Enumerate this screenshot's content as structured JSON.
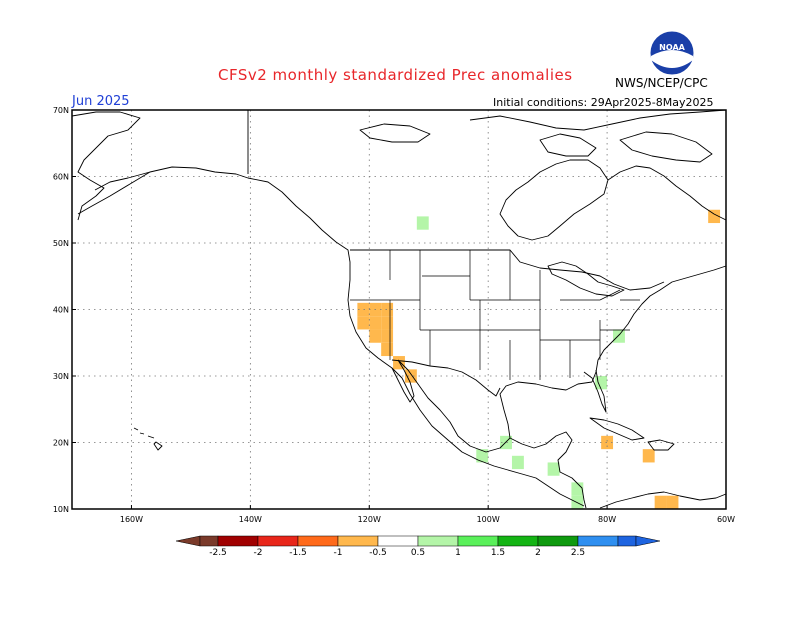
{
  "header": {
    "title": "CFSv2 monthly standardized Prec anomalies",
    "org": "NWS/NCEP/CPC",
    "month": "Jun 2025",
    "initial_conditions": "Initial conditions: 29Apr2025-8May2025",
    "logo_text": "NOAA"
  },
  "map": {
    "lon_range": [
      -170,
      -60
    ],
    "lat_range": [
      10,
      70
    ],
    "lat_labels": [
      "70N",
      "60N",
      "50N",
      "40N",
      "30N",
      "20N",
      "10N"
    ],
    "lon_labels": [
      "160W",
      "140W",
      "120W",
      "100W",
      "80W",
      "60W"
    ],
    "grid": true,
    "coastline_color": "#000000",
    "anomaly_cells": [
      {
        "lon": -121,
        "lat": 40,
        "category": "-0.5 to -1",
        "color": "#ffb84d"
      },
      {
        "lon": -119,
        "lat": 40,
        "category": "-0.5 to -1",
        "color": "#ffb84d"
      },
      {
        "lon": -117,
        "lat": 40,
        "category": "-0.5 to -1",
        "color": "#ffb84d"
      },
      {
        "lon": -121,
        "lat": 38,
        "category": "-0.5 to -1",
        "color": "#ffb84d"
      },
      {
        "lon": -119,
        "lat": 38,
        "category": "-0.5 to -1",
        "color": "#ffb84d"
      },
      {
        "lon": -117,
        "lat": 38,
        "category": "-0.5 to -1",
        "color": "#ffb84d"
      },
      {
        "lon": -119,
        "lat": 36,
        "category": "-0.5 to -1",
        "color": "#ffb84d"
      },
      {
        "lon": -117,
        "lat": 36,
        "category": "-0.5 to -1",
        "color": "#ffb84d"
      },
      {
        "lon": -117,
        "lat": 34,
        "category": "-0.5 to -1",
        "color": "#ffb84d"
      },
      {
        "lon": -115,
        "lat": 32,
        "category": "-0.5 to -1",
        "color": "#ffb84d"
      },
      {
        "lon": -113,
        "lat": 30,
        "category": "-0.5 to -1",
        "color": "#ffb84d"
      },
      {
        "lon": -62,
        "lat": 54,
        "category": "-0.5 to -1",
        "color": "#ffb84d"
      },
      {
        "lon": -80,
        "lat": 20,
        "category": "-0.5 to -1",
        "color": "#ffb84d"
      },
      {
        "lon": -73,
        "lat": 18,
        "category": "-0.5 to -1",
        "color": "#ffb84d"
      },
      {
        "lon": -71,
        "lat": 11,
        "category": "-0.5 to -1",
        "color": "#ffb84d"
      },
      {
        "lon": -69,
        "lat": 11,
        "category": "-0.5 to -1",
        "color": "#ffb84d"
      },
      {
        "lon": -111,
        "lat": 53,
        "category": "0.5 to 1",
        "color": "#b4f5a8"
      },
      {
        "lon": -81,
        "lat": 29,
        "category": "0.5 to 1",
        "color": "#b4f5a8"
      },
      {
        "lon": -101,
        "lat": 18,
        "category": "0.5 to 1",
        "color": "#b4f5a8"
      },
      {
        "lon": -97,
        "lat": 20,
        "category": "0.5 to 1",
        "color": "#b4f5a8"
      },
      {
        "lon": -95,
        "lat": 17,
        "category": "0.5 to 1",
        "color": "#b4f5a8"
      },
      {
        "lon": -89,
        "lat": 16,
        "category": "0.5 to 1",
        "color": "#b4f5a8"
      },
      {
        "lon": -85,
        "lat": 13,
        "category": "0.5 to 1",
        "color": "#b4f5a8"
      },
      {
        "lon": -85,
        "lat": 11,
        "category": "0.5 to 1",
        "color": "#b4f5a8"
      },
      {
        "lon": -78,
        "lat": 36,
        "category": "0.5 to 1",
        "color": "#b4f5a8"
      }
    ]
  },
  "colorbar": {
    "labels": [
      "-2.5",
      "-2",
      "-1.5",
      "-1",
      "-0.5",
      "0.5",
      "1",
      "1.5",
      "2",
      "2.5"
    ],
    "neg_colors": [
      "#7a3a2a",
      "#a00000",
      "#e8261a",
      "#ff6a1a",
      "#ffb84d"
    ],
    "pos_colors": [
      "#b4f5a8",
      "#5af05a",
      "#14b414",
      "#0f9a0f",
      "#2f8ff0",
      "#1e64e0"
    ]
  }
}
